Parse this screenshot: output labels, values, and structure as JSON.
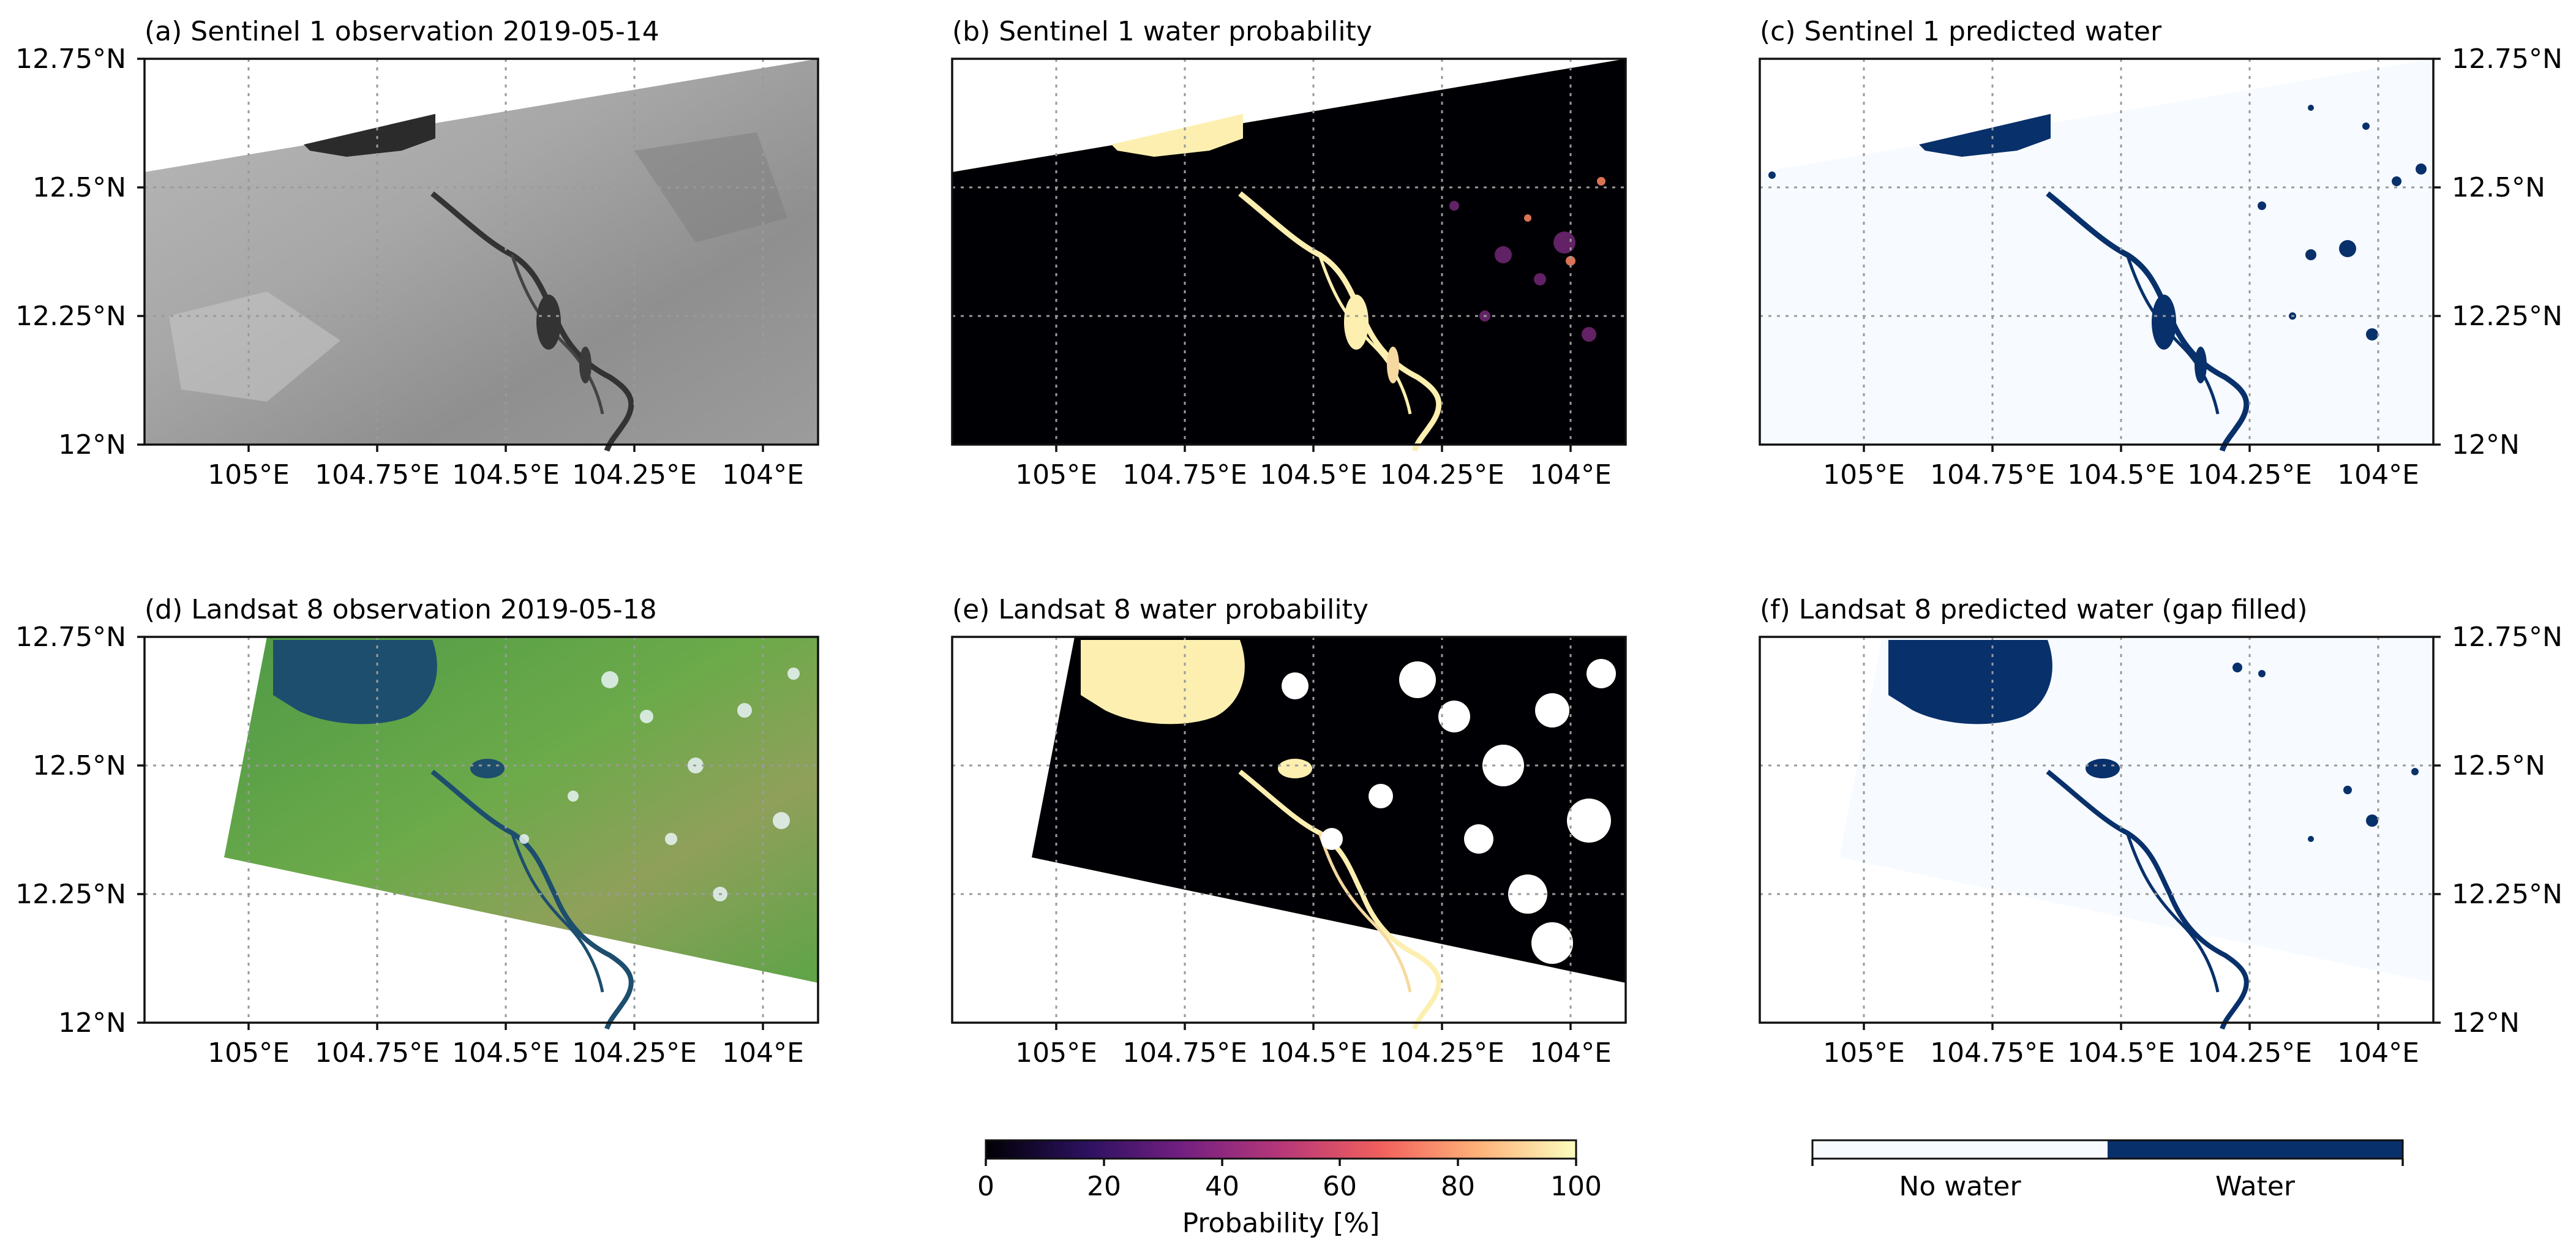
{
  "figure": {
    "panels": [
      {
        "title": "(a) Sentinel 1 observation 2019-05-14",
        "kind": "sar"
      },
      {
        "title": "(b) Sentinel 1 water probability",
        "kind": "prob"
      },
      {
        "title": "(c) Sentinel 1 predicted water",
        "kind": "water"
      },
      {
        "title": "(d) Landsat 8 observation 2019-05-18",
        "kind": "optical"
      },
      {
        "title": "(e) Landsat 8 water probability",
        "kind": "prob"
      },
      {
        "title": "(f) Landsat 8 predicted water (gap filled)",
        "kind": "water"
      }
    ],
    "lon_ticks": [
      "105°E",
      "104.75°E",
      "104.5°E",
      "104.25°E",
      "104°E"
    ],
    "lat_ticks": [
      "12.75°N",
      "12.5°N",
      "12.25°N",
      "12°N"
    ],
    "probability_colorbar": {
      "ticks": [
        "0",
        "20",
        "40",
        "60",
        "80",
        "100"
      ],
      "label": "Probability [%]",
      "colors": [
        "#000004",
        "#2c115f",
        "#721f81",
        "#b73779",
        "#f1605d",
        "#feb078",
        "#fcfdbf"
      ]
    },
    "water_colorbar": {
      "labels": [
        "No water",
        "Water"
      ],
      "colors": [
        "#f7fbff",
        "#08306b"
      ]
    },
    "colors": {
      "water": "#08306b",
      "no_water": "#f7fbff",
      "prob_high": "#fcefb0",
      "prob_low": "#000004",
      "sar_bg": "#9f9f9f",
      "sar_water": "#2b2b2b",
      "optical_bg": "#5da447",
      "optical_water": "#1d4e6e"
    }
  }
}
